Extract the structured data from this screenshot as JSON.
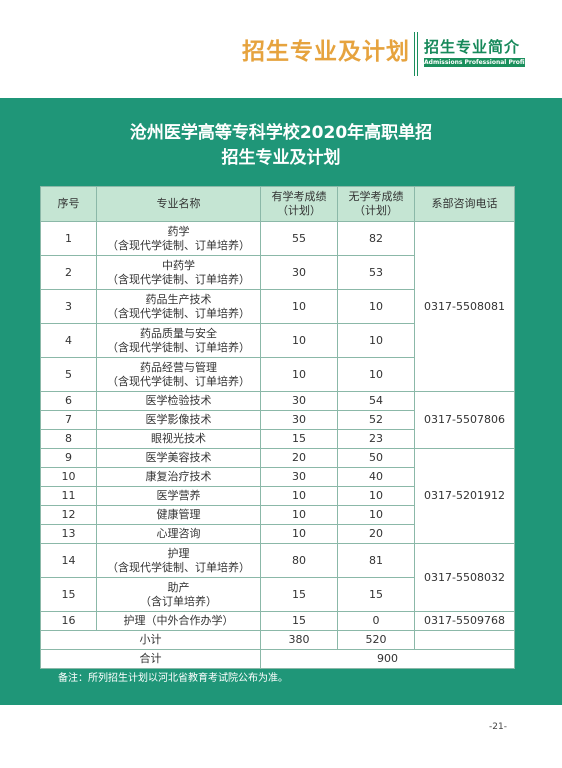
{
  "header": {
    "title": "招生专业及计划",
    "section": "招生专业简介",
    "section_en": "Admissions Professional Profile"
  },
  "document": {
    "title_line1": "沧州医学高等专科学校2020年高职单招",
    "title_line2": "招生专业及计划"
  },
  "table": {
    "headers": {
      "no": "序号",
      "name": "专业名称",
      "with_score": "有学考成绩",
      "with_score_sub": "（计划）",
      "without_score": "无学考成绩",
      "without_score_sub": "（计划）",
      "phone": "系部咨询电话"
    },
    "rows": [
      {
        "no": "1",
        "name": "药学",
        "sub": "（含现代学徒制、订单培养）",
        "with": "55",
        "without": "82"
      },
      {
        "no": "2",
        "name": "中药学",
        "sub": "（含现代学徒制、订单培养）",
        "with": "30",
        "without": "53"
      },
      {
        "no": "3",
        "name": "药品生产技术",
        "sub": "（含现代学徒制、订单培养）",
        "with": "10",
        "without": "10"
      },
      {
        "no": "4",
        "name": "药品质量与安全",
        "sub": "（含现代学徒制、订单培养）",
        "with": "10",
        "without": "10"
      },
      {
        "no": "5",
        "name": "药品经营与管理",
        "sub": "（含现代学徒制、订单培养）",
        "with": "10",
        "without": "10"
      },
      {
        "no": "6",
        "name": "医学检验技术",
        "with": "30",
        "without": "54"
      },
      {
        "no": "7",
        "name": "医学影像技术",
        "with": "30",
        "without": "52"
      },
      {
        "no": "8",
        "name": "眼视光技术",
        "with": "15",
        "without": "23"
      },
      {
        "no": "9",
        "name": "医学美容技术",
        "with": "20",
        "without": "50"
      },
      {
        "no": "10",
        "name": "康复治疗技术",
        "with": "30",
        "without": "40"
      },
      {
        "no": "11",
        "name": "医学营养",
        "with": "10",
        "without": "10"
      },
      {
        "no": "12",
        "name": "健康管理",
        "with": "10",
        "without": "10"
      },
      {
        "no": "13",
        "name": "心理咨询",
        "with": "10",
        "without": "20"
      },
      {
        "no": "14",
        "name": "护理",
        "sub": "（含现代学徒制、订单培养）",
        "with": "80",
        "without": "81"
      },
      {
        "no": "15",
        "name": "助产",
        "sub": "（含订单培养）",
        "with": "15",
        "without": "15"
      },
      {
        "no": "16",
        "name": "护理（中外合作办学）",
        "with": "15",
        "without": "0"
      }
    ],
    "phones": [
      "0317-5508081",
      "0317-5507806",
      "0317-5201912",
      "0317-5508032",
      "0317-5509768"
    ],
    "subtotal": {
      "label": "小计",
      "with": "380",
      "without": "520"
    },
    "total": {
      "label": "合计",
      "value": "900"
    }
  },
  "note": "备注：所列招生计划以河北省教育考试院公布为准。",
  "page_number": "-21-",
  "colors": {
    "title_orange": "#e6a33e",
    "brand_green": "#1a8f5c",
    "panel_teal": "#1f9678",
    "table_header_bg": "#c5e5d3"
  }
}
